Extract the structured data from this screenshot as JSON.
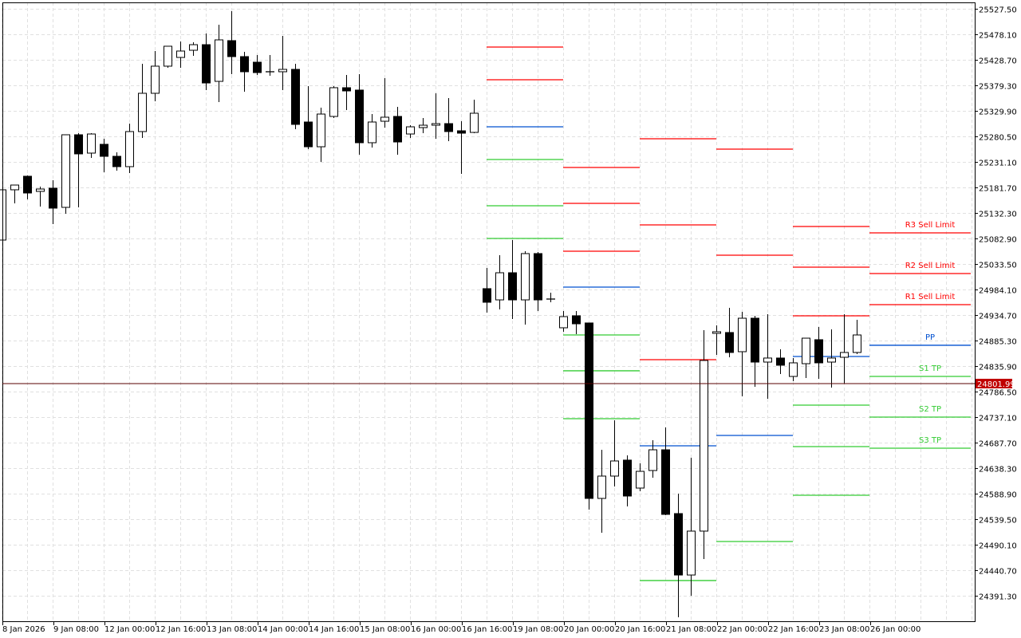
{
  "chart_data": {
    "type": "candlestick",
    "instrument_note": "",
    "y_axis": {
      "range": [
        24349.6,
        25527.5
      ],
      "ticks": [
        "25527.50",
        "25478.10",
        "25428.70",
        "25379.30",
        "25329.90",
        "25280.50",
        "25231.10",
        "25181.70",
        "25132.30",
        "25082.90",
        "25033.50",
        "24984.10",
        "24934.70",
        "24885.30",
        "24835.90",
        "24786.50",
        "24737.10",
        "24687.70",
        "24638.30",
        "24588.90",
        "24539.50",
        "24490.10",
        "24440.70",
        "24391.30"
      ],
      "position": "right"
    },
    "x_axis": {
      "labels": [
        "8 Jan 2026",
        "9 Jan 08:00",
        "12 Jan 00:00",
        "12 Jan 16:00",
        "13 Jan 08:00",
        "14 Jan 00:00",
        "14 Jan 16:00",
        "15 Jan 08:00",
        "16 Jan 00:00",
        "16 Jan 16:00",
        "19 Jan 08:00",
        "20 Jan 00:00",
        "20 Jan 16:00",
        "21 Jan 08:00",
        "22 Jan 00:00",
        "22 Jan 16:00",
        "23 Jan 08:00",
        "26 Jan 00:00"
      ],
      "bars_per_label": 4
    },
    "grid": true,
    "current_price": {
      "value": "24801.99",
      "color": "#c00000"
    },
    "colors": {
      "bull_body": "#ffffff",
      "bear_body": "#000000",
      "wick": "#000000",
      "resistance": "#ff0000",
      "pivot": "#0050d0",
      "support": "#33cc33",
      "grid": "#e0e0e0"
    },
    "candles": [
      [
        25079.8,
        25177.1,
        25079.8,
        25177.1
      ],
      [
        25177.1,
        25186.3,
        25150.8,
        25186.3
      ],
      [
        25203.3,
        25204.9,
        25158.6,
        25170.9
      ],
      [
        25174.0,
        25183.3,
        25144.7,
        25178.6
      ],
      [
        25180.2,
        25195.6,
        25110.7,
        25141.6
      ],
      [
        25143.1,
        25283.6,
        25130.8,
        25283.6
      ],
      [
        25283.6,
        25286.7,
        25143.1,
        25246.6
      ],
      [
        25248.1,
        25286.7,
        25238.8,
        25285.1
      ],
      [
        25265.1,
        25275.9,
        25211.0,
        25241.9
      ],
      [
        25241.9,
        25249.6,
        25214.1,
        25221.9
      ],
      [
        25221.9,
        25305.2,
        25209.5,
        25289.8
      ],
      [
        25289.8,
        25421.0,
        25277.4,
        25363.9
      ],
      [
        25363.9,
        25445.7,
        25348.4,
        25416.4
      ],
      [
        25416.4,
        25455.0,
        25413.3,
        25455.0
      ],
      [
        25433.3,
        25464.2,
        25413.3,
        25445.7
      ],
      [
        25447.2,
        25462.7,
        25436.4,
        25458.0
      ],
      [
        25458.0,
        25479.7,
        25370.1,
        25383.9
      ],
      [
        25387.0,
        25496.6,
        25346.9,
        25467.3
      ],
      [
        25465.8,
        25522.9,
        25400.9,
        25434.9
      ],
      [
        25434.9,
        25444.2,
        25367.0,
        25405.6
      ],
      [
        25424.1,
        25438.0,
        25399.4,
        25404.0
      ],
      [
        25405.6,
        25438.0,
        25397.8,
        25405.6
      ],
      [
        25405.6,
        25475.0,
        25370.1,
        25410.2
      ],
      [
        25410.2,
        25421.0,
        25294.4,
        25303.7
      ],
      [
        25308.3,
        25377.8,
        25255.8,
        25260.4
      ],
      [
        25260.4,
        25336.1,
        25231.1,
        25323.7
      ],
      [
        25319.1,
        25377.8,
        25316.0,
        25374.7
      ],
      [
        25374.7,
        25399.4,
        25331.5,
        25368.5
      ],
      [
        25370.1,
        25400.9,
        25245.0,
        25268.2
      ],
      [
        25268.2,
        25323.7,
        25258.9,
        25308.3
      ],
      [
        25309.8,
        25393.2,
        25297.5,
        25317.6
      ],
      [
        25319.1,
        25337.6,
        25245.0,
        25269.7
      ],
      [
        25285.1,
        25302.1,
        25277.4,
        25299.0
      ],
      [
        25297.5,
        25316.0,
        25286.7,
        25302.1
      ],
      [
        25302.1,
        25363.9,
        25275.9,
        25305.2
      ],
      [
        25305.2,
        25354.6,
        25271.3,
        25289.8
      ],
      [
        25291.3,
        25309.8,
        25208.0,
        25286.7
      ],
      [
        25288.2,
        25351.5,
        25286.7,
        25325.3
      ],
      [
        24985.7,
        25025.8,
        24939.3,
        24959.4
      ],
      [
        24964.0,
        25050.5,
        24945.5,
        25016.5
      ],
      [
        25016.5,
        25079.8,
        24927.0,
        24964.0
      ],
      [
        24964.0,
        25058.2,
        24916.2,
        25053.6
      ],
      [
        25053.6,
        25056.7,
        24942.4,
        24964.0
      ],
      [
        24965.6,
        24977.9,
        24959.4,
        24965.6
      ],
      [
        24910.0,
        24942.4,
        24902.3,
        24931.6
      ],
      [
        24933.2,
        24942.4,
        24897.7,
        24917.7
      ],
      [
        24919.3,
        24919.3,
        24558.0,
        24579.7
      ],
      [
        24579.7,
        24673.8,
        24513.3,
        24622.9
      ],
      [
        24622.9,
        24730.9,
        24602.8,
        24652.2
      ],
      [
        24653.8,
        24663.0,
        24564.2,
        24584.3
      ],
      [
        24599.7,
        24647.6,
        24593.5,
        24632.1
      ],
      [
        24633.7,
        24692.3,
        24619.8,
        24673.8
      ],
      [
        24673.8,
        24717.1,
        24547.2,
        24548.8
      ],
      [
        24550.3,
        24588.9,
        24349.6,
        24431.4
      ],
      [
        24431.4,
        24658.4,
        24391.3,
        24516.4
      ],
      [
        24516.4,
        24905.4,
        24462.3,
        24846.7
      ],
      [
        24899.2,
        24914.6,
        24857.5,
        24902.3
      ],
      [
        24900.8,
        24948.6,
        24852.9,
        24862.2
      ],
      [
        24863.7,
        24940.9,
        24777.3,
        24928.5
      ],
      [
        24928.5,
        24933.2,
        24795.8,
        24843.6
      ],
      [
        24843.6,
        24936.3,
        24772.6,
        24851.4
      ],
      [
        24851.4,
        24868.3,
        24820.5,
        24837.5
      ],
      [
        24815.8,
        24851.4,
        24806.6,
        24842.1
      ],
      [
        24840.5,
        24889.9,
        24812.8,
        24889.9
      ],
      [
        24886.9,
        24911.6,
        24811.2,
        24842.1
      ],
      [
        24843.6,
        24906.9,
        24794.2,
        24851.4
      ],
      [
        24852.9,
        24936.3,
        24802.0,
        24862.2
      ],
      [
        24862.2,
        24925.5,
        24859.1,
        24896.1
      ]
    ],
    "pivot_segments": [
      {
        "start_bar": 38,
        "end_bar": 44,
        "resistance": [
          25453.4,
          25390.1
        ],
        "pivot": 25299.0,
        "support": [
          25235.7,
          25146.2,
          25082.9
        ]
      },
      {
        "start_bar": 44,
        "end_bar": 50,
        "resistance": [
          25220.3,
          25150.8,
          25058.2
        ],
        "pivot": 24988.7,
        "support": [
          24896.1,
          24826.7,
          24734.0
        ]
      },
      {
        "start_bar": 50,
        "end_bar": 56,
        "resistance": [
          25275.9,
          25109.2,
          24848.3
        ],
        "pivot": 24681.5,
        "support": [
          24420.7
        ]
      },
      {
        "start_bar": 56,
        "end_bar": 62,
        "resistance": [
          25255.8,
          25050.5
        ],
        "pivot": 24701.6,
        "support": [
          24496.3
        ]
      },
      {
        "start_bar": 62,
        "end_bar": 68,
        "resistance": [
          25106.1,
          25027.3,
          24933.2
        ],
        "pivot": 24854.4,
        "support": [
          24760.3,
          24680.0,
          24585.8
        ]
      }
    ],
    "current_levels": {
      "start_bar": 68,
      "lines": [
        {
          "label": "R3 Sell Limit",
          "value": 25093.7,
          "kind": "resistance"
        },
        {
          "label": "R2 Sell Limit",
          "value": 25015.0,
          "kind": "resistance"
        },
        {
          "label": "R1 Sell Limit",
          "value": 24954.8,
          "kind": "resistance"
        },
        {
          "label": "PP",
          "value": 24876.1,
          "kind": "pivot"
        },
        {
          "label": "S1 TP",
          "value": 24815.8,
          "kind": "support"
        },
        {
          "label": "S2 TP",
          "value": 24737.1,
          "kind": "support"
        },
        {
          "label": "S3 TP",
          "value": 24676.9,
          "kind": "support"
        }
      ]
    }
  }
}
